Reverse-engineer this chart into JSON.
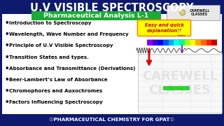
{
  "title": "U.V VISIBLE SPECTROSCOPY",
  "title_bg": "#0d1a6e",
  "title_color": "#ffffff",
  "subtitle": "Pharmaceutical Analysis L-1",
  "subtitle_bg": "#1aaa35",
  "subtitle_color": "#ffffff",
  "footer": "☉PHARMACEUTICAL CHEMISTRY FOR GPAT☉",
  "footer_bg": "#0d1a6e",
  "footer_color": "#ffffff",
  "outer_bg": "#0d1a6e",
  "inner_bg": "#ffffff",
  "bullet_items": [
    "Introduction to Spectroscopy",
    "Wavelength, Wave Number and Frequency",
    "Principle of U.V Visible Spectroscopy",
    "Transition States and types.",
    "Absorbance and Transmittance (Derivations)",
    "Beer-Lambert’s Law of Absorbance",
    "Chromophores and Auxochromes",
    "Factors Influencing Spectroscopy"
  ],
  "bullet_color": "#000000",
  "easy_quick_bg": "#ffff00",
  "easy_quick_text": "Easy and quick\nexplanation!!",
  "easy_quick_color": "#cc0000",
  "carewell_text": "CAREWELL\nCLASSES",
  "spectrum_colors": [
    "#8800ff",
    "#4400cc",
    "#0000ff",
    "#0055ff",
    "#00aaff",
    "#00ffff",
    "#00ff88",
    "#aaff00",
    "#ffff00",
    "#ffaa00",
    "#ff6600",
    "#ff2200",
    "#cc0000"
  ],
  "watermark": "CAREWELL\nCLASSES"
}
